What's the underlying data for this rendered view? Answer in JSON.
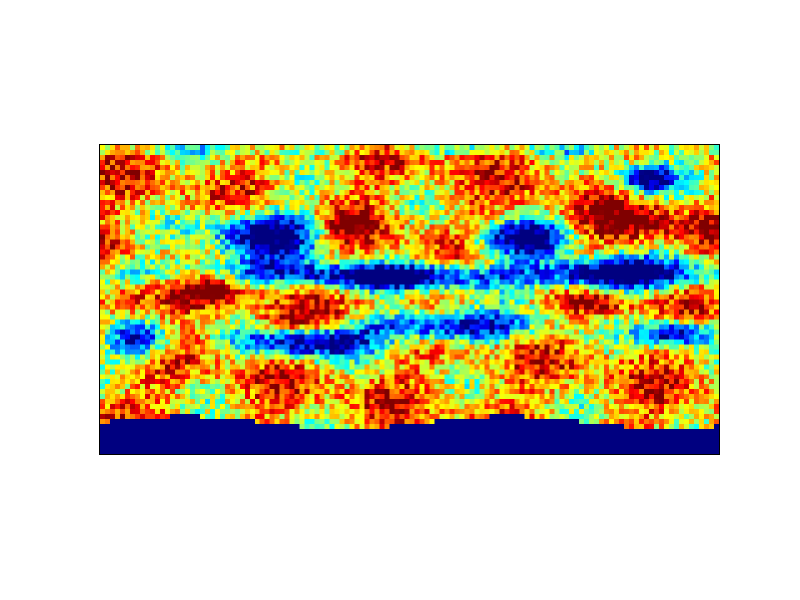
{
  "chart_data": {
    "type": "heatmap",
    "title": "",
    "xlabel": "",
    "ylabel": "",
    "colormap": "jet",
    "grid": false,
    "axes_ticks": false,
    "colorbar": false,
    "rows": 62,
    "cols": 124,
    "value_range": [
      0,
      1
    ],
    "colors": {
      "low": "#00007f",
      "mid_low": "#0000ff",
      "mid": "#7fff7f",
      "mid_high": "#ff7f00",
      "high": "#7f0000",
      "frame": "#000000",
      "background": "#ffffff"
    }
  }
}
